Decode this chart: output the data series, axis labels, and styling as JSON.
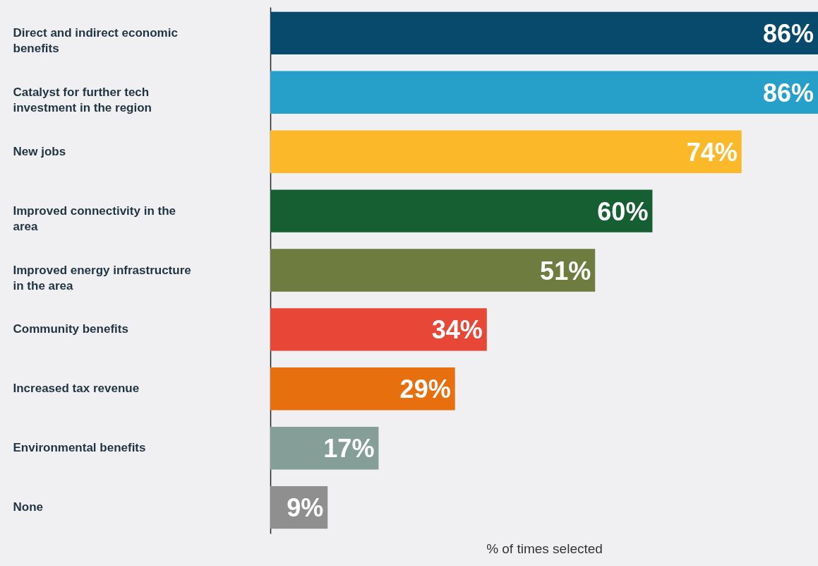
{
  "chart_data": {
    "type": "bar",
    "orientation": "horizontal",
    "xlabel": "% of times selected",
    "categories": [
      "Direct and indirect economic benefits",
      "Catalyst for further tech investment in the region",
      "New jobs",
      "Improved connectivity in the area",
      "Improved energy infrastructure in the area",
      "Community benefits",
      "Increased tax revenue",
      "Environmental benefits",
      "None"
    ],
    "values": [
      86,
      86,
      74,
      60,
      51,
      34,
      29,
      17,
      9
    ],
    "colors": [
      "#074a6b",
      "#27a0c9",
      "#fbb829",
      "#155f32",
      "#6e7c40",
      "#e84636",
      "#e86f0e",
      "#869e98",
      "#8f8f8f"
    ],
    "value_labels": [
      "86%",
      "86%",
      "74%",
      "60%",
      "51%",
      "34%",
      "29%",
      "17%",
      "9%"
    ],
    "xlim": [
      0,
      86
    ],
    "tick_labels": "y"
  }
}
